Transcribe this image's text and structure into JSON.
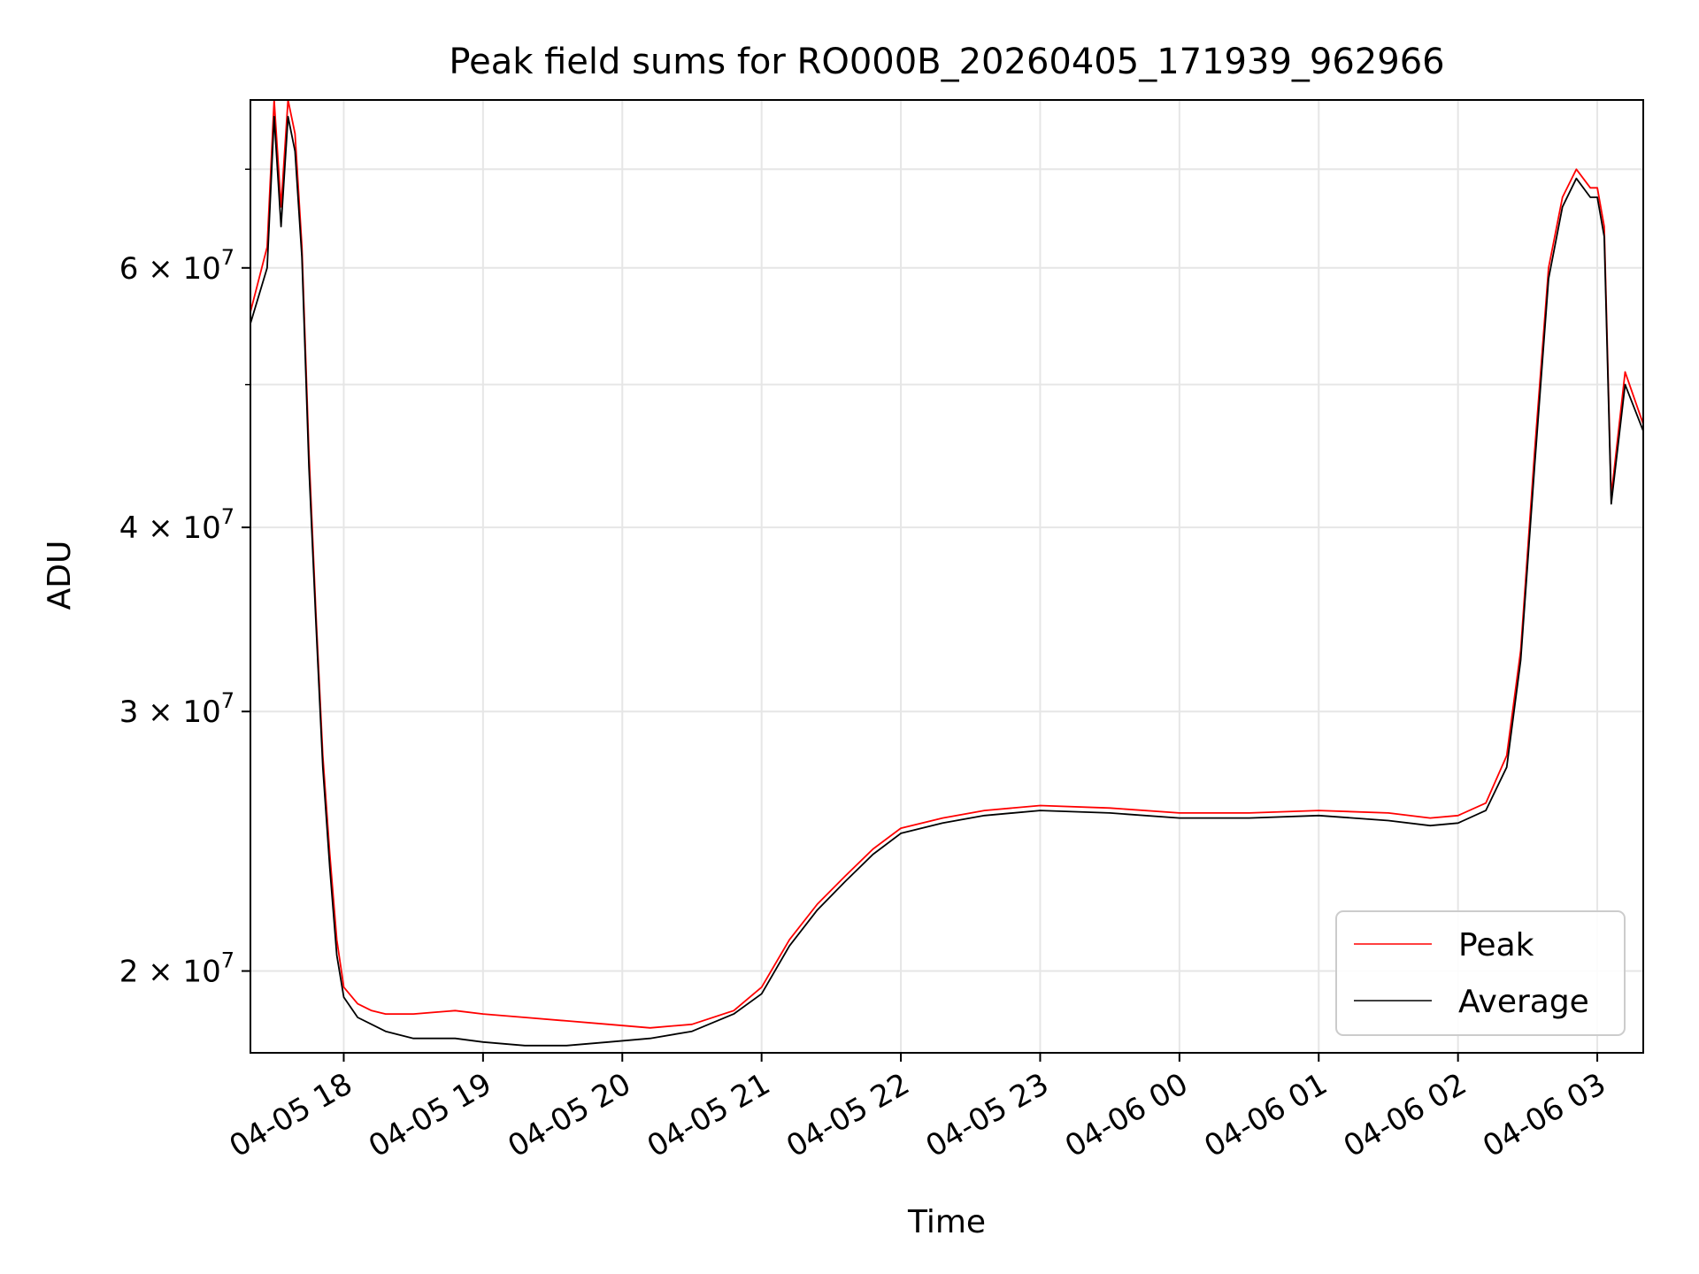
{
  "chart_data": {
    "type": "line",
    "title": "Peak field sums for RO000B_20260405_171939_962966",
    "xlabel": "Time",
    "ylabel": "ADU",
    "yscale": "log",
    "ylim": [
      17600000,
      78000000
    ],
    "xlim_hours_since_2026_04_05_17_00": [
      0.33,
      10.33
    ],
    "grid": true,
    "legend_position": "lower right",
    "x_ticks": [
      {
        "label": "04-05 18",
        "hour": 1
      },
      {
        "label": "04-05 19",
        "hour": 2
      },
      {
        "label": "04-05 20",
        "hour": 3
      },
      {
        "label": "04-05 21",
        "hour": 4
      },
      {
        "label": "04-05 22",
        "hour": 5
      },
      {
        "label": "04-05 23",
        "hour": 6
      },
      {
        "label": "04-06 00",
        "hour": 7
      },
      {
        "label": "04-06 01",
        "hour": 8
      },
      {
        "label": "04-06 02",
        "hour": 9
      },
      {
        "label": "04-06 03",
        "hour": 10
      }
    ],
    "y_ticks": [
      {
        "mantissa": "2",
        "exponent": "7",
        "value": 20000000
      },
      {
        "mantissa": "3",
        "exponent": "7",
        "value": 30000000
      },
      {
        "mantissa": "4",
        "exponent": "7",
        "value": 40000000
      },
      {
        "mantissa": "6",
        "exponent": "7",
        "value": 60000000
      }
    ],
    "y_minor_ticks": [
      50000000,
      70000000
    ],
    "series": [
      {
        "name": "Peak",
        "color": "#ff0000",
        "x": [
          0.33,
          0.45,
          0.5,
          0.55,
          0.6,
          0.65,
          0.7,
          0.75,
          0.8,
          0.85,
          0.9,
          0.95,
          1.0,
          1.1,
          1.2,
          1.3,
          1.5,
          1.8,
          2.0,
          2.3,
          2.6,
          2.9,
          3.2,
          3.5,
          3.8,
          4.0,
          4.2,
          4.4,
          4.6,
          4.8,
          5.0,
          5.3,
          5.6,
          6.0,
          6.5,
          7.0,
          7.5,
          8.0,
          8.5,
          8.8,
          9.0,
          9.2,
          9.35,
          9.45,
          9.55,
          9.65,
          9.75,
          9.85,
          9.95,
          10.0,
          10.05,
          10.1,
          10.2,
          10.33
        ],
        "y": [
          56000000,
          62000000,
          78000000,
          66000000,
          78000000,
          74000000,
          62000000,
          45000000,
          35000000,
          28000000,
          24000000,
          21000000,
          19500000,
          19000000,
          18800000,
          18700000,
          18700000,
          18800000,
          18700000,
          18600000,
          18500000,
          18400000,
          18300000,
          18400000,
          18800000,
          19500000,
          21000000,
          22200000,
          23200000,
          24200000,
          25000000,
          25400000,
          25700000,
          25900000,
          25800000,
          25600000,
          25600000,
          25700000,
          25600000,
          25400000,
          25500000,
          26000000,
          28000000,
          33000000,
          45000000,
          60000000,
          67000000,
          70000000,
          68000000,
          68000000,
          64000000,
          42000000,
          51000000,
          47000000
        ]
      },
      {
        "name": "Average",
        "color": "#000000",
        "x": [
          0.33,
          0.45,
          0.5,
          0.55,
          0.6,
          0.65,
          0.7,
          0.75,
          0.8,
          0.85,
          0.9,
          0.95,
          1.0,
          1.1,
          1.2,
          1.3,
          1.5,
          1.8,
          2.0,
          2.3,
          2.6,
          2.9,
          3.2,
          3.5,
          3.8,
          4.0,
          4.2,
          4.4,
          4.6,
          4.8,
          5.0,
          5.3,
          5.6,
          6.0,
          6.5,
          7.0,
          7.5,
          8.0,
          8.5,
          8.8,
          9.0,
          9.2,
          9.35,
          9.45,
          9.55,
          9.65,
          9.75,
          9.85,
          9.95,
          10.0,
          10.05,
          10.1,
          10.2,
          10.33
        ],
        "y": [
          55000000,
          60000000,
          76000000,
          64000000,
          76000000,
          72000000,
          61000000,
          44000000,
          34500000,
          27500000,
          23500000,
          20500000,
          19200000,
          18600000,
          18400000,
          18200000,
          18000000,
          18000000,
          17900000,
          17800000,
          17800000,
          17900000,
          18000000,
          18200000,
          18700000,
          19300000,
          20800000,
          22000000,
          23000000,
          24000000,
          24800000,
          25200000,
          25500000,
          25700000,
          25600000,
          25400000,
          25400000,
          25500000,
          25300000,
          25100000,
          25200000,
          25700000,
          27500000,
          32500000,
          44000000,
          59000000,
          66000000,
          69000000,
          67000000,
          67000000,
          63000000,
          41500000,
          50000000,
          46500000
        ]
      }
    ],
    "legend": [
      "Peak",
      "Average"
    ]
  }
}
